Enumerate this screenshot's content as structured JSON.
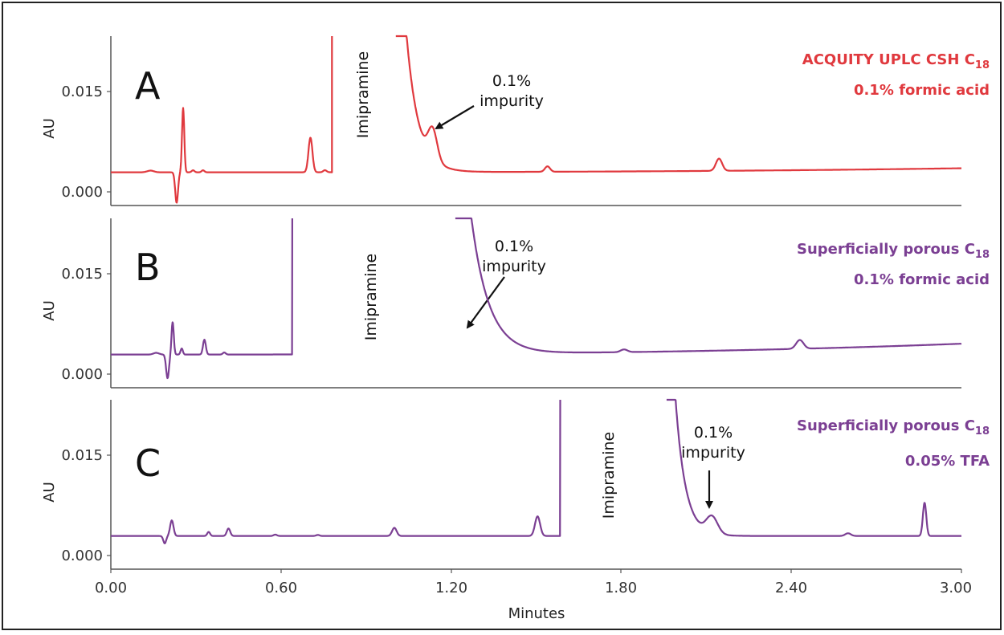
{
  "chart_data": {
    "type": "line",
    "xlabel": "Minutes",
    "x_ticks": [
      "0.00",
      "0.60",
      "1.20",
      "1.80",
      "2.40",
      "3.00"
    ],
    "xlim": [
      0,
      3
    ],
    "panels": [
      {
        "id": "A",
        "letter": "A",
        "color": "#e0393e",
        "ylabel": "AU",
        "y_ticks": [
          "0.015",
          "0.000"
        ],
        "ylim": [
          -0.002,
          0.023
        ],
        "column": "ACQUITY UPLC CSH C",
        "column_sub": "18",
        "mobile_phase": "0.1% formic acid",
        "main_peak_label": "Imipramine",
        "impurity_label_1": "0.1%",
        "impurity_label_2": "impurity",
        "baseline": 0.0029,
        "peaks": [
          {
            "t": 0.14,
            "h": 0.00025,
            "w": 0.012
          },
          {
            "t": 0.232,
            "h": -0.0045,
            "w": 0.005
          },
          {
            "t": 0.255,
            "h": 0.0095,
            "w": 0.004
          },
          {
            "t": 0.29,
            "h": 0.0003,
            "w": 0.005
          },
          {
            "t": 0.325,
            "h": 0.0003,
            "w": 0.005
          },
          {
            "t": 0.704,
            "h": 0.0051,
            "w": 0.007
          },
          {
            "t": 0.755,
            "h": 0.0003,
            "w": 0.006
          },
          {
            "t": 1.135,
            "h": 0.0044,
            "w": 0.016
          },
          {
            "t": 1.54,
            "h": 0.0008,
            "w": 0.009
          },
          {
            "t": 2.145,
            "h": 0.0018,
            "w": 0.011
          }
        ],
        "tail": {
          "start": 1.005,
          "decay": 0.042
        },
        "gap": [
          0.78,
          1.005
        ],
        "drift": 0.0006
      },
      {
        "id": "B",
        "letter": "B",
        "color": "#7b3f93",
        "ylabel": "AU",
        "y_ticks": [
          "0.015",
          "0.000"
        ],
        "ylim": [
          -0.002,
          0.023
        ],
        "column": "Superficially porous C",
        "column_sub": "18",
        "mobile_phase": "0.1% formic acid",
        "main_peak_label": "Imipramine",
        "impurity_label_1": "0.1%",
        "impurity_label_2": "impurity",
        "baseline": 0.0029,
        "peaks": [
          {
            "t": 0.16,
            "h": 0.00025,
            "w": 0.01
          },
          {
            "t": 0.2,
            "h": -0.0035,
            "w": 0.005
          },
          {
            "t": 0.218,
            "h": 0.0048,
            "w": 0.004
          },
          {
            "t": 0.25,
            "h": 0.0009,
            "w": 0.004
          },
          {
            "t": 0.33,
            "h": 0.0022,
            "w": 0.005
          },
          {
            "t": 0.4,
            "h": 0.0003,
            "w": 0.005
          },
          {
            "t": 1.81,
            "h": 0.0004,
            "w": 0.012
          },
          {
            "t": 2.43,
            "h": 0.0013,
            "w": 0.013
          }
        ],
        "tail": {
          "start": 1.215,
          "decay": 0.062
        },
        "gap": [
          0.64,
          1.215
        ],
        "drift": 0.0016
      },
      {
        "id": "C",
        "letter": "C",
        "color": "#7b3f93",
        "ylabel": "AU",
        "y_ticks": [
          "0.015",
          "0.000"
        ],
        "ylim": [
          -0.002,
          0.023
        ],
        "column": "Superficially porous C",
        "column_sub": "18",
        "mobile_phase": "0.05% TFA",
        "main_peak_label": "Imipramine",
        "impurity_label_1": "0.1%",
        "impurity_label_2": "impurity",
        "baseline": 0.0029,
        "peaks": [
          {
            "t": 0.19,
            "h": -0.0011,
            "w": 0.005
          },
          {
            "t": 0.215,
            "h": 0.0023,
            "w": 0.006
          },
          {
            "t": 0.345,
            "h": 0.0006,
            "w": 0.005
          },
          {
            "t": 0.415,
            "h": 0.0011,
            "w": 0.006
          },
          {
            "t": 0.58,
            "h": 0.0002,
            "w": 0.006
          },
          {
            "t": 0.73,
            "h": 0.00015,
            "w": 0.006
          },
          {
            "t": 1.0,
            "h": 0.0012,
            "w": 0.008
          },
          {
            "t": 1.505,
            "h": 0.0029,
            "w": 0.009
          },
          {
            "t": 2.12,
            "h": 0.0025,
            "w": 0.02
          },
          {
            "t": 2.6,
            "h": 0.0004,
            "w": 0.01
          },
          {
            "t": 2.87,
            "h": 0.0049,
            "w": 0.006
          }
        ],
        "tail": {
          "start": 1.96,
          "decay": 0.035
        },
        "gap": [
          1.585,
          1.96
        ],
        "drift": 0.0
      }
    ]
  }
}
